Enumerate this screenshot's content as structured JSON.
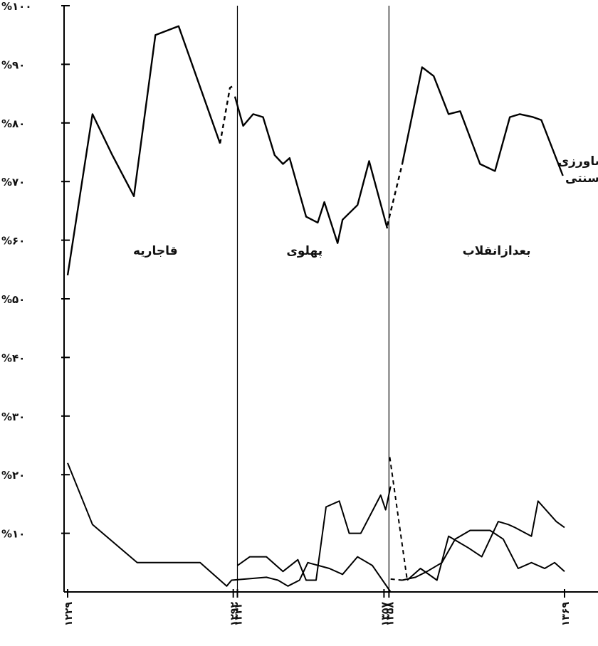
{
  "chart_data": {
    "type": "line",
    "ylim": [
      0,
      100
    ],
    "ylabel": "",
    "xlabel": "",
    "grid": false,
    "legend": "none",
    "yticks": [
      {
        "value": 100,
        "label": "%۱۰۰"
      },
      {
        "value": 90,
        "label": "%۹۰"
      },
      {
        "value": 80,
        "label": "%۸۰"
      },
      {
        "value": 70,
        "label": "%۷۰"
      },
      {
        "value": 60,
        "label": "%۶۰"
      },
      {
        "value": 50,
        "label": "%۵۰"
      },
      {
        "value": 40,
        "label": "%۴۰"
      },
      {
        "value": 30,
        "label": "%۳۰"
      },
      {
        "value": 20,
        "label": "%۲۰"
      },
      {
        "value": 10,
        "label": "%۱۰"
      }
    ],
    "xticks": [
      {
        "value": 0,
        "label": "۱۲۲۹"
      },
      {
        "value": 10,
        "label": "۱۲۹۲"
      },
      {
        "value": 10.25,
        "label": "۱۳۴۲"
      },
      {
        "value": 19.1,
        "label": "۱۳۵۷"
      },
      {
        "value": 19.4,
        "label": "۱۳۵۸"
      },
      {
        "value": 30,
        "label": "۱۳۶۹"
      }
    ],
    "eras": [
      {
        "label": "قاجاریه",
        "x_center": 5.3,
        "y": 57.5
      },
      {
        "label": "پهلوی",
        "x_center": 14.3,
        "y": 57.5
      },
      {
        "label": "بعدازانقلاب",
        "x_center": 25.9,
        "y": 57.5
      }
    ],
    "dividers": [
      10.25,
      19.4
    ],
    "annotation": {
      "lines": [
        "کشاورزی",
        "وسنتی"
      ],
      "x": 31.3,
      "y": 72.8
    },
    "series": [
      {
        "segments": [
          {
            "style": "solid",
            "points": [
              [
                0,
                54
              ],
              [
                1.5,
                81.5
              ],
              [
                2.7,
                74.5
              ],
              [
                4,
                67.5
              ],
              [
                5.3,
                95
              ],
              [
                6.7,
                96.5
              ],
              [
                9.2,
                76.5
              ]
            ]
          },
          {
            "style": "dashed",
            "points": [
              [
                9.2,
                76.5
              ],
              [
                9.8,
                86
              ],
              [
                10.1,
                86.5
              ]
            ]
          },
          {
            "style": "solid",
            "points": [
              [
                10.1,
                84.5
              ],
              [
                10.6,
                79.5
              ],
              [
                11.2,
                81.5
              ],
              [
                11.8,
                81
              ],
              [
                12.5,
                74.5
              ],
              [
                13,
                73
              ],
              [
                13.4,
                74
              ],
              [
                14.4,
                64
              ],
              [
                15.1,
                63
              ],
              [
                15.5,
                66.5
              ],
              [
                16.3,
                59.5
              ],
              [
                16.6,
                63.5
              ],
              [
                17.5,
                66
              ],
              [
                18.2,
                73.5
              ],
              [
                19.3,
                62
              ]
            ]
          },
          {
            "style": "dashed",
            "points": [
              [
                19.3,
                62.5
              ],
              [
                20.2,
                73
              ]
            ]
          },
          {
            "style": "solid",
            "points": [
              [
                20.2,
                73
              ],
              [
                21.4,
                89.5
              ],
              [
                22.1,
                88
              ],
              [
                23,
                81.5
              ],
              [
                23.7,
                82
              ],
              [
                24.9,
                73
              ],
              [
                25.8,
                71.8
              ],
              [
                26.7,
                81
              ],
              [
                27.3,
                81.5
              ],
              [
                28.1,
                81
              ],
              [
                28.6,
                80.5
              ],
              [
                29.9,
                71
              ]
            ]
          }
        ]
      },
      {
        "segments": [
          {
            "style": "solid",
            "points": [
              [
                0,
                22
              ],
              [
                1.5,
                11.5
              ],
              [
                4.2,
                5
              ],
              [
                8,
                5
              ],
              [
                9.6,
                1
              ],
              [
                9.9,
                2
              ],
              [
                12,
                2.5
              ],
              [
                12.7,
                2
              ],
              [
                13.3,
                1
              ],
              [
                14,
                2
              ],
              [
                14.5,
                5
              ],
              [
                15.8,
                4
              ],
              [
                16.6,
                3
              ],
              [
                17.5,
                6
              ],
              [
                18.4,
                4.5
              ],
              [
                19.5,
                0
              ]
            ]
          },
          {
            "style": "solid",
            "points": [
              [
                10.25,
                4.5
              ],
              [
                11,
                6
              ],
              [
                12,
                6
              ],
              [
                13,
                3.5
              ],
              [
                13.9,
                5.5
              ],
              [
                14.4,
                2
              ],
              [
                15,
                2
              ],
              [
                15.6,
                14.5
              ],
              [
                16.4,
                15.5
              ],
              [
                17,
                10
              ],
              [
                17.7,
                10
              ],
              [
                18.9,
                16.5
              ],
              [
                19.2,
                14
              ],
              [
                19.5,
                18
              ]
            ]
          },
          {
            "style": "dashed",
            "points": [
              [
                19.45,
                23
              ],
              [
                20.5,
                2
              ]
            ]
          },
          {
            "style": "dashed",
            "points": [
              [
                19.5,
                2.2
              ],
              [
                20.2,
                2
              ]
            ]
          },
          {
            "style": "solid",
            "points": [
              [
                20.5,
                2
              ],
              [
                21.3,
                4
              ],
              [
                22.3,
                2
              ],
              [
                23,
                9.5
              ],
              [
                24.2,
                7.5
              ],
              [
                25,
                6
              ],
              [
                26,
                12
              ],
              [
                26.6,
                11.5
              ],
              [
                27,
                11
              ],
              [
                28,
                9.5
              ],
              [
                28.4,
                15.5
              ],
              [
                29.5,
                12
              ],
              [
                30,
                11
              ]
            ]
          },
          {
            "style": "solid",
            "points": [
              [
                20.2,
                2
              ],
              [
                21,
                2.5
              ],
              [
                21.7,
                3.5
              ],
              [
                22.6,
                5
              ],
              [
                23.4,
                9
              ],
              [
                24.3,
                10.5
              ],
              [
                25.5,
                10.5
              ],
              [
                26.3,
                9
              ],
              [
                27.2,
                4
              ],
              [
                28,
                5
              ],
              [
                28.8,
                4
              ],
              [
                29.4,
                5
              ],
              [
                30,
                3.5
              ]
            ]
          }
        ]
      }
    ]
  }
}
